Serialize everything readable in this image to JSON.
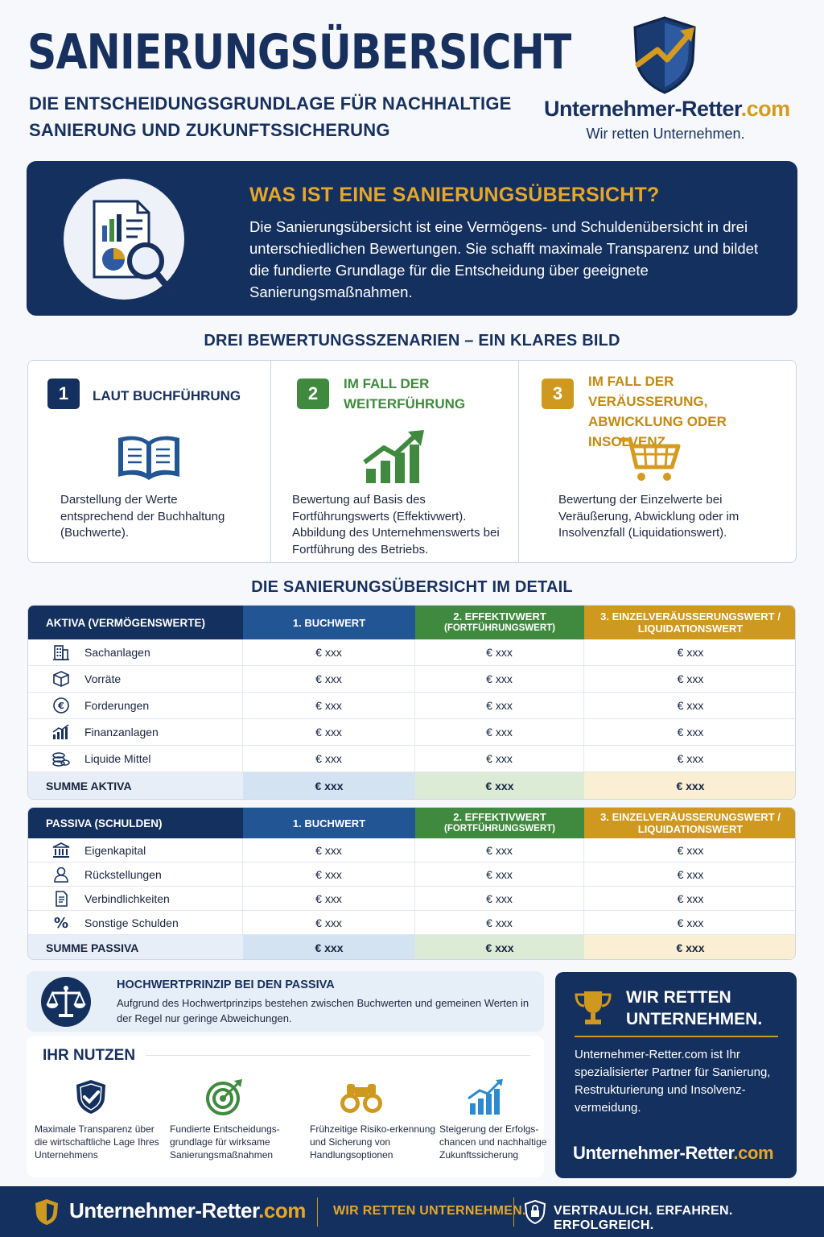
{
  "header": {
    "title": "SANIERUNGSÜBERSICHT",
    "subtitle": "DIE ENTSCHEIDUNGSGRUNDLAGE FÜR NACHHALTIGE SANIERUNG UND ZUKUNFTSSICHERUNG",
    "brand_name": "Unternehmer-Retter",
    "brand_tld": ".com",
    "brand_tagline": "Wir retten Unternehmen."
  },
  "intro": {
    "heading": "WAS IST EINE SANIERUNGSÜBERSICHT?",
    "text": "Die Sanierungsübersicht ist eine Vermögens- und Schuldenübersicht in drei unterschiedlichen Bewertungen. Sie schafft maximale Transparenz und bildet die fundierte Grundlage für die Entscheidung über geeignete Sanierungsmaßnahmen.",
    "icon": "report-magnifier-icon"
  },
  "scenarios": {
    "heading": "DREI BEWERTUNGSSZENARIEN – EIN KLARES BILD",
    "items": [
      {
        "number": "1",
        "title": "LAUT BUCHFÜHRUNG",
        "text": "Darstellung der Werte entsprechend der Buchhaltung (Buchwerte).",
        "icon": "book-icon",
        "color": "#14305e"
      },
      {
        "number": "2",
        "title": "IM FALL DER WEITERFÜHRUNG",
        "text": "Bewertung auf Basis des Fortführungswerts (Effektivwert). Abbildung des Unternehmenswerts bei Fortführung des Betriebs.",
        "icon": "growth-chart-icon",
        "color": "#3f8a3e"
      },
      {
        "number": "3",
        "title": "IM FALL DER VERÄUSSERUNG, ABWICKLUNG ODER INSOLVENZ",
        "text": "Bewertung der Einzelwerte bei Veräußerung, Abwicklung oder im Insolvenzfall (Liquidationswert).",
        "icon": "shopping-cart-icon",
        "color": "#cf981f"
      }
    ]
  },
  "detail": {
    "heading": "DIE SANIERUNGSÜBERSICHT IM DETAIL",
    "columns": [
      "1. BUCHWERT",
      "2. EFFEKTIVWERT",
      "(FORTFÜHRUNGSWERT)",
      "3. EINZELVERÄUSSERUNGSWERT /",
      "LIQUIDATIONSWERT"
    ],
    "value": "€ xxx",
    "aktiva": {
      "header": "AKTIVA (VERMÖGENSWERTE)",
      "rows": [
        "Sachanlagen",
        "Vorräte",
        "Forderungen",
        "Finanzanlagen",
        "Liquide Mittel"
      ],
      "row_icons": [
        "building-icon",
        "box-icon",
        "euro-coin-icon",
        "bar-chart-icon",
        "coins-icon"
      ],
      "sum_label": "SUMME AKTIVA"
    },
    "passiva": {
      "header": "PASSIVA (SCHULDEN)",
      "rows": [
        "Eigenkapital",
        "Rückstellungen",
        "Verbindlichkeiten",
        "Sonstige Schulden"
      ],
      "row_icons": [
        "bank-icon",
        "person-icon",
        "document-icon",
        "percent-icon"
      ],
      "sum_label": "SUMME PASSIVA"
    }
  },
  "hochwert": {
    "title": "HOCHWERTPRINZIP BEI DEN PASSIVA",
    "text": "Aufgrund des Hochwertprinzips bestehen zwischen Buchwerten und gemeinen Werten in der Regel nur geringe Abweichungen.",
    "icon": "scales-icon"
  },
  "nutzen": {
    "heading": "IHR NUTZEN",
    "items": [
      {
        "text": "Maximale Transparenz über die wirtschaftliche Lage Ihres Unternehmens",
        "icon": "shield-check-icon"
      },
      {
        "text": "Fundierte Entscheidungs-grundlage für wirksame Sanierungsmaßnahmen",
        "icon": "target-icon"
      },
      {
        "text": "Frühzeitige Risiko-erkennung und Sicherung von Handlungsoptionen",
        "icon": "binoculars-icon"
      },
      {
        "text": "Steigerung der Erfolgs-chancen und nachhaltige Zukunftssicherung",
        "icon": "trend-chart-icon"
      }
    ]
  },
  "promo": {
    "title": "WIR RETTEN UNTERNEHMEN.",
    "text": "Unternehmer-Retter.com ist Ihr spezialisierter Partner für Sanierung, Restrukturierung und Insolvenz-vermeidung.",
    "link_name": "Unternehmer-Retter",
    "link_tld": ".com",
    "icon": "trophy-icon"
  },
  "footer": {
    "brand_name": "Unternehmer-Retter",
    "brand_tld": ".com",
    "tagline": "WIR RETTEN UNTERNEHMEN.",
    "claim": "VERTRAULICH. ERFAHREN. ERFOLGREICH."
  },
  "colors": {
    "navy": "#14305e",
    "blue": "#225594",
    "green": "#3f8a3e",
    "gold": "#cf981f"
  }
}
